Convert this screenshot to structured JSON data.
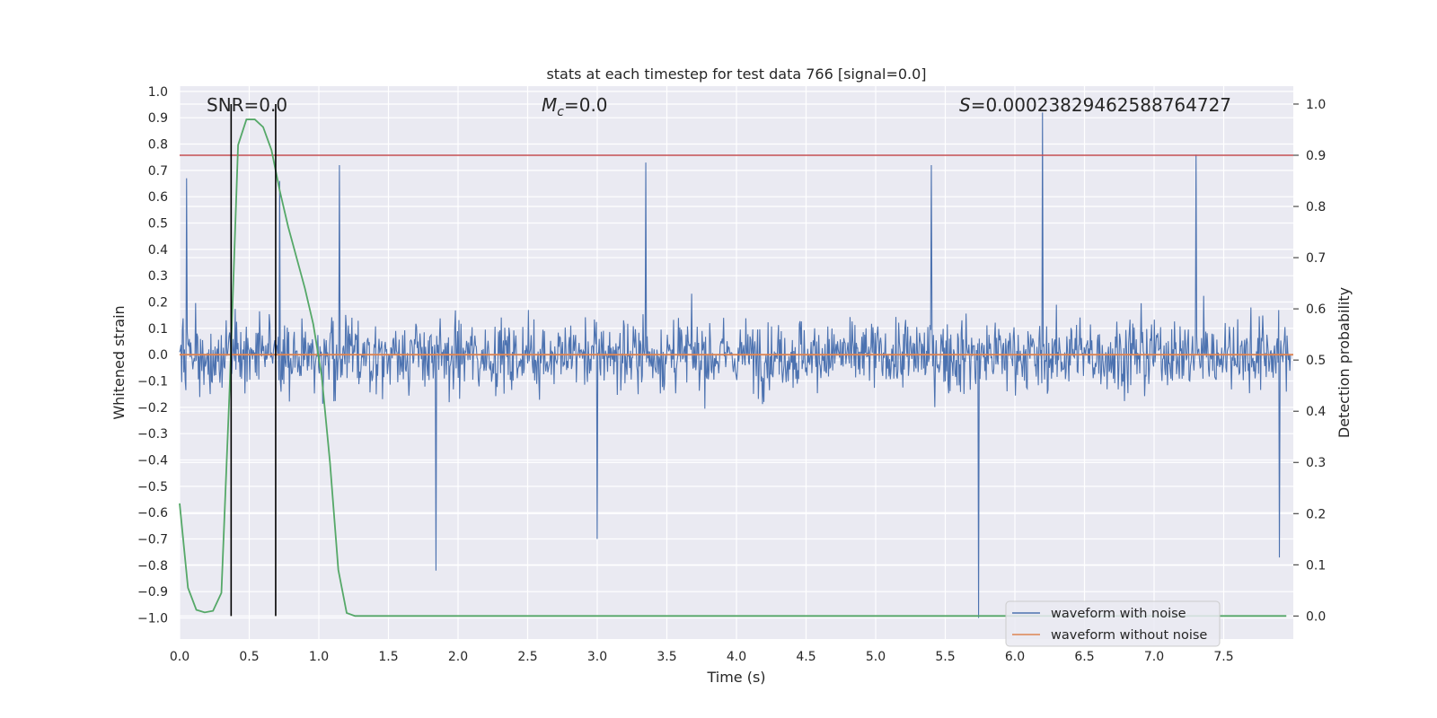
{
  "chart_data": {
    "type": "line",
    "title": "stats at each timestep for test data 766 [signal=0.0]",
    "xlabel": "Time (s)",
    "ylabel_left": "Whitened strain",
    "ylabel_right": "Detection probability",
    "xlim": [
      0.0,
      8.0
    ],
    "ylim_left": [
      -1.08,
      1.02
    ],
    "ylim_right": [
      -0.045,
      1.035
    ],
    "xticks": [
      "0.0",
      "0.5",
      "1.0",
      "1.5",
      "2.0",
      "2.5",
      "3.0",
      "3.5",
      "4.0",
      "4.5",
      "5.0",
      "5.5",
      "6.0",
      "6.5",
      "7.0",
      "7.5"
    ],
    "yticks_left": [
      "1.0",
      "0.9",
      "0.8",
      "0.7",
      "0.6",
      "0.5",
      "0.4",
      "0.3",
      "0.2",
      "0.1",
      "0.0",
      "-0.1",
      "-0.2",
      "-0.3",
      "-0.4",
      "-0.5",
      "-0.6",
      "-0.7",
      "-0.8",
      "-0.9",
      "-1.0"
    ],
    "yticks_right": [
      "1.0",
      "0.9",
      "0.8",
      "0.7",
      "0.6",
      "0.5",
      "0.4",
      "0.3",
      "0.2",
      "0.1",
      "0.0"
    ],
    "grid": true,
    "legend_position": "bottom-right",
    "annotations": {
      "snr": "SNR=0.0",
      "mc_symbol": "M",
      "mc_subscript": "c",
      "mc_value": "=0.0",
      "s_symbol": "S",
      "s_value": "=0.00023829462588764727"
    },
    "series": [
      {
        "name": "waveform with noise",
        "axis": "left",
        "color": "#4c72b0",
        "noise_amplitude_typical": [
          -0.45,
          0.45
        ],
        "noise_peaks": [
          {
            "x": 0.05,
            "y": 0.67
          },
          {
            "x": 0.72,
            "y": 0.66
          },
          {
            "x": 1.15,
            "y": 0.72
          },
          {
            "x": 1.84,
            "y": -0.82
          },
          {
            "x": 3.0,
            "y": -0.7
          },
          {
            "x": 3.35,
            "y": 0.73
          },
          {
            "x": 5.4,
            "y": 0.72
          },
          {
            "x": 5.74,
            "y": -1.0
          },
          {
            "x": 6.2,
            "y": 0.92
          },
          {
            "x": 7.3,
            "y": 0.76
          },
          {
            "x": 7.9,
            "y": -0.77
          }
        ]
      },
      {
        "name": "waveform without noise",
        "axis": "left",
        "color": "#dd8452",
        "x": [
          0.0,
          8.0
        ],
        "y": [
          0.0,
          0.0
        ]
      },
      {
        "name": "detection probability",
        "axis": "right",
        "color": "#55a868",
        "x": [
          0.0,
          0.06,
          0.12,
          0.18,
          0.24,
          0.3,
          0.36,
          0.42,
          0.48,
          0.54,
          0.6,
          0.66,
          0.72,
          0.78,
          0.84,
          0.9,
          0.96,
          1.02,
          1.08,
          1.14,
          1.2,
          1.26,
          1.32,
          7.95
        ],
        "y": [
          0.22,
          0.055,
          0.012,
          0.007,
          0.01,
          0.045,
          0.45,
          0.92,
          0.97,
          0.97,
          0.955,
          0.91,
          0.83,
          0.76,
          0.7,
          0.64,
          0.57,
          0.47,
          0.3,
          0.09,
          0.006,
          0.0,
          0.0,
          0.0
        ]
      }
    ],
    "threshold": {
      "axis": "right",
      "y": 0.9,
      "color": "#c44e52"
    },
    "vlines": [
      {
        "x": 0.37,
        "color": "#000000"
      },
      {
        "x": 0.69,
        "color": "#000000"
      }
    ]
  }
}
